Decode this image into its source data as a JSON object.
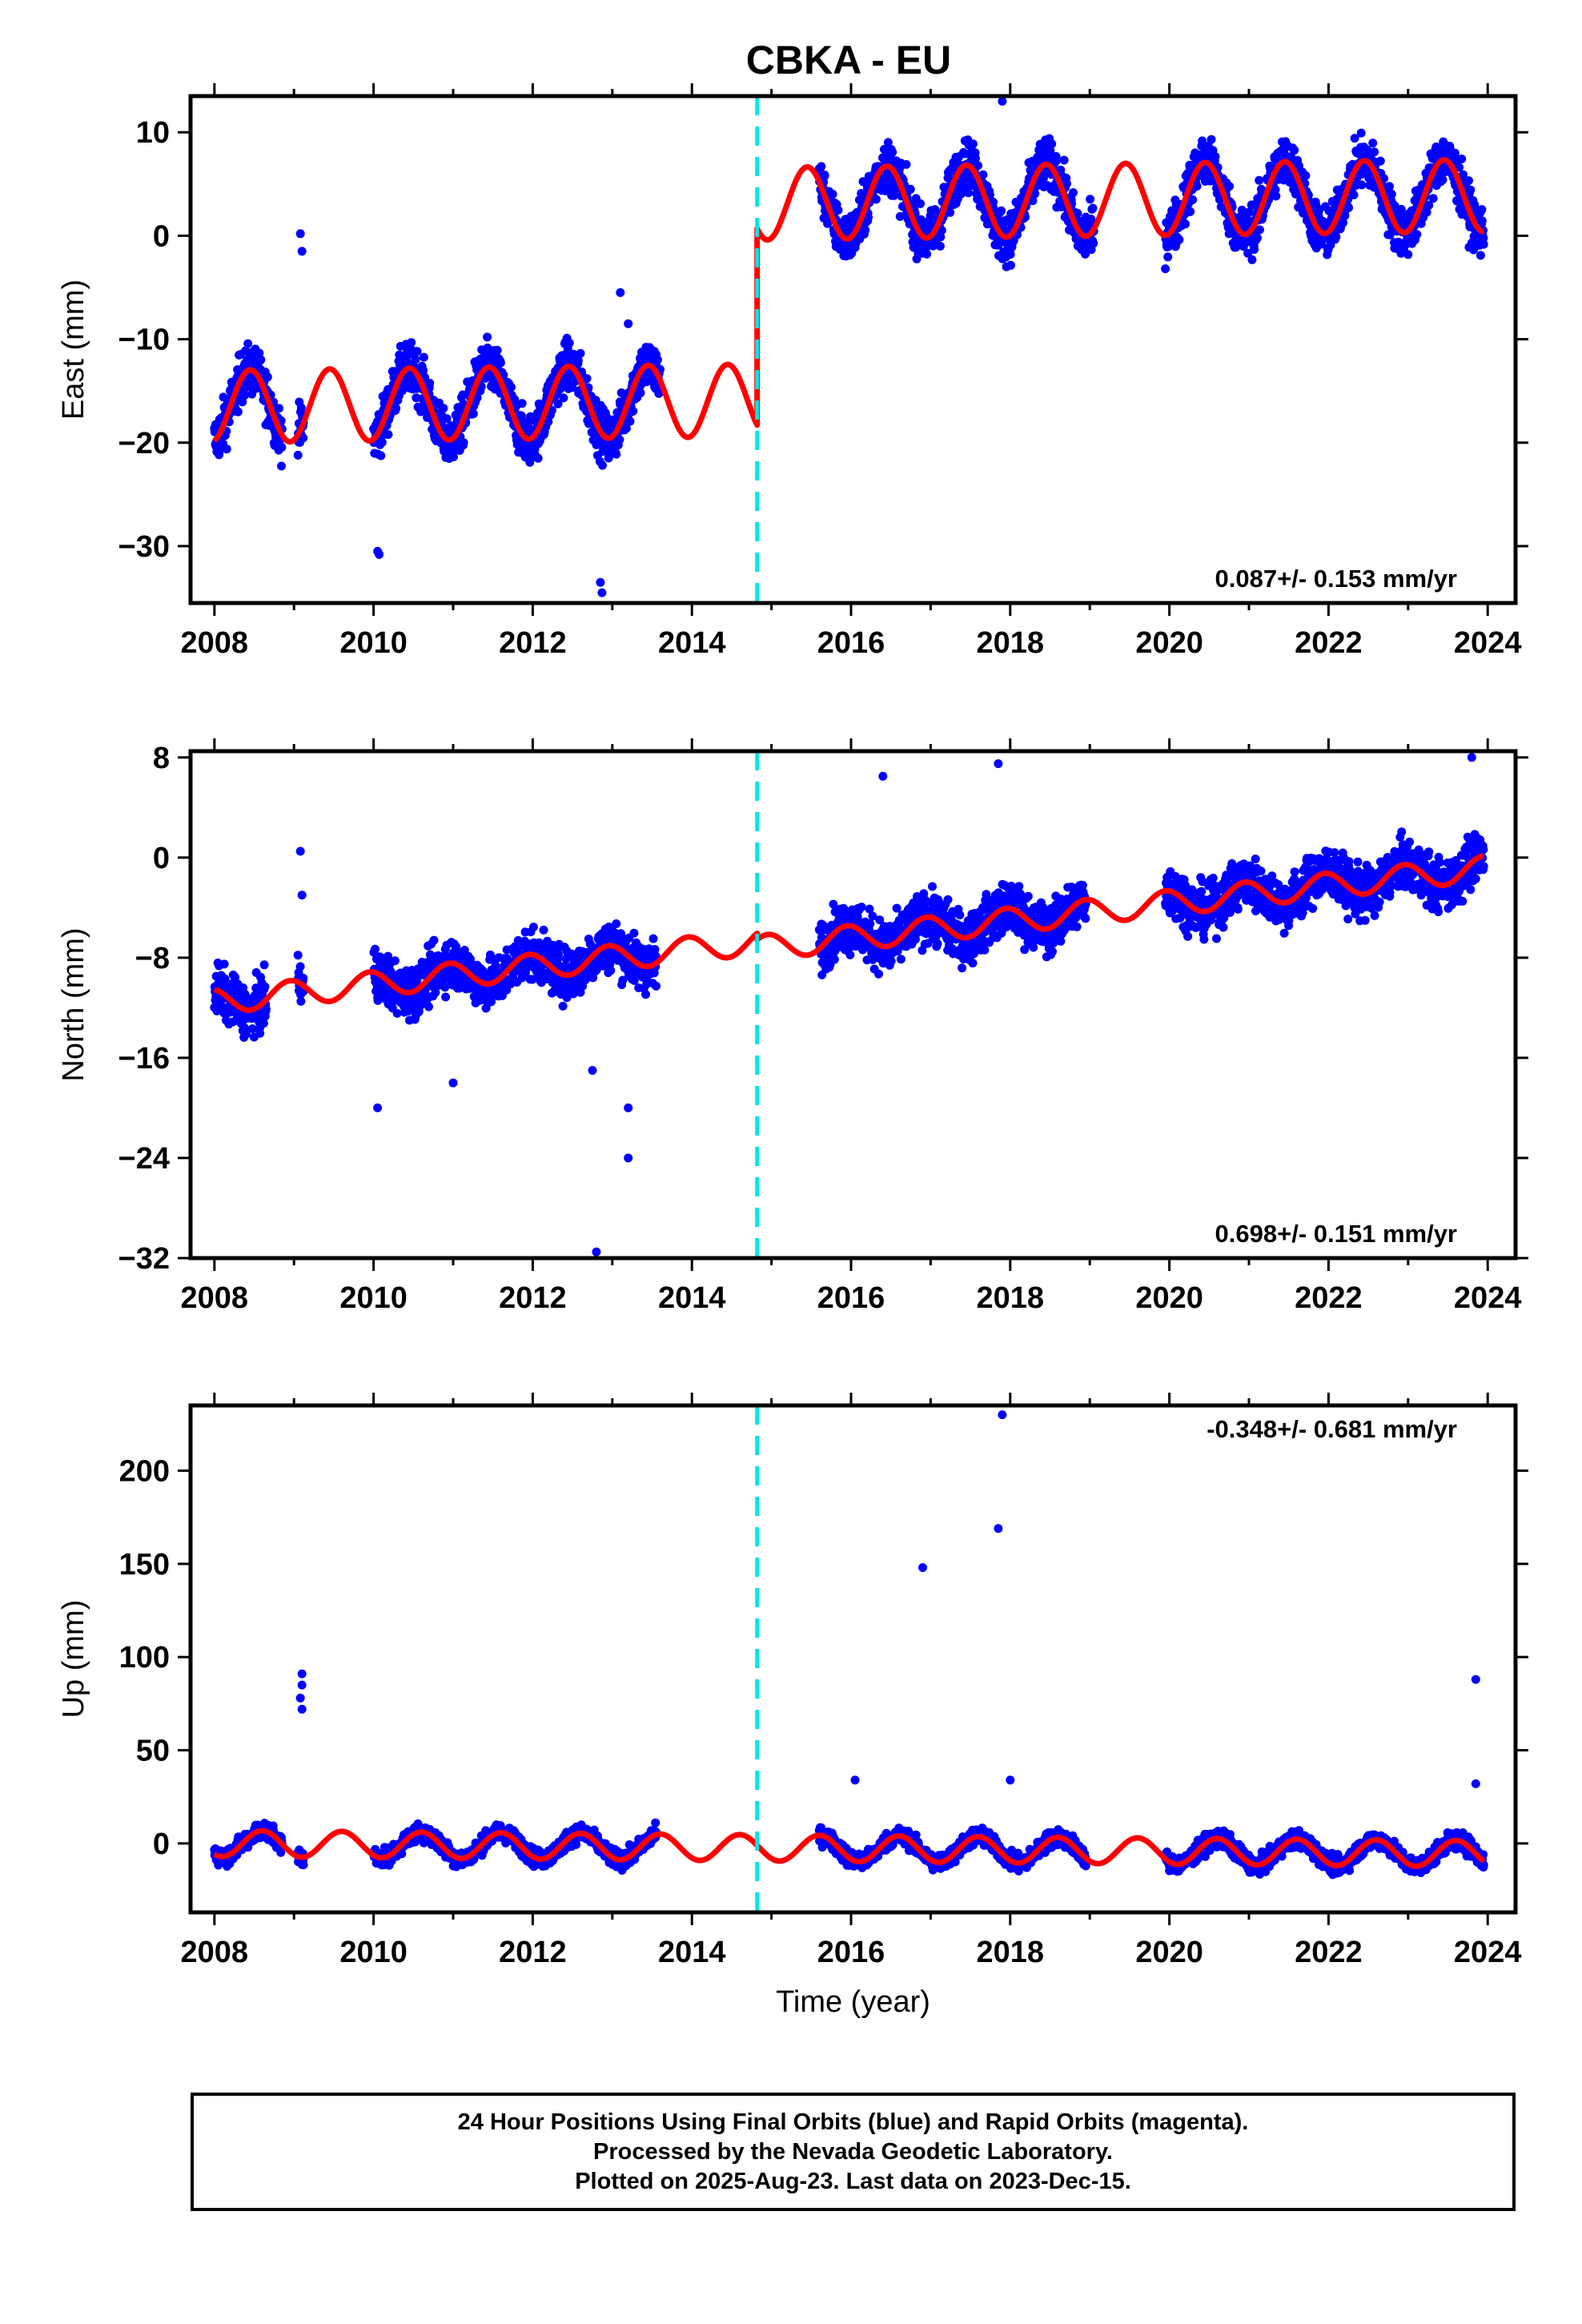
{
  "title": "CBKA - EU",
  "footer": {
    "line1": "24 Hour Positions Using Final Orbits (blue) and Rapid Orbits (magenta).",
    "line2": "Processed by the Nevada Geodetic Laboratory.",
    "line3": "Plotted on 2025-Aug-23. Last data on 2023-Dec-15."
  },
  "colors": {
    "data": "#0000ff",
    "model": "#ff0000",
    "offset_line": "#00e5e5"
  },
  "chart_data": [
    {
      "type": "scatter",
      "name": "east",
      "ylabel": "East (mm)",
      "xlabel": "",
      "xlim": [
        2007.7,
        2024.35
      ],
      "ylim": [
        -35.5,
        13.5
      ],
      "xticks": [
        2008,
        2010,
        2012,
        2014,
        2016,
        2018,
        2020,
        2022,
        2024
      ],
      "yticks": [
        10,
        0,
        -10,
        -20,
        -30
      ],
      "offset_epoch": 2014.82,
      "velocity_label": "0.087+/- 0.153 mm/yr",
      "model": {
        "offset_before": -16.5,
        "offset_after": 2.5,
        "trend": 0.087,
        "amplitude": 3.5,
        "phase_peak": 2008.45
      },
      "data_segments": [
        [
          2008.0,
          2008.85
        ],
        [
          2009.05,
          2009.12
        ],
        [
          2010.0,
          2013.6
        ],
        [
          2015.6,
          2019.05
        ],
        [
          2019.95,
          2023.95
        ]
      ],
      "outliers": [
        [
          2009.08,
          0.2
        ],
        [
          2009.1,
          -1.5
        ],
        [
          2010.05,
          -30.5
        ],
        [
          2010.07,
          -30.8
        ],
        [
          2012.85,
          -33.5
        ],
        [
          2012.87,
          -34.5
        ],
        [
          2017.9,
          13.0
        ],
        [
          2013.1,
          -5.5
        ],
        [
          2013.2,
          -8.5
        ]
      ]
    },
    {
      "type": "scatter",
      "name": "north",
      "ylabel": "North (mm)",
      "xlabel": "",
      "xlim": [
        2007.7,
        2024.35
      ],
      "ylim": [
        -32,
        8.5
      ],
      "xticks": [
        2008,
        2010,
        2012,
        2014,
        2016,
        2018,
        2020,
        2022,
        2024
      ],
      "yticks": [
        8,
        0,
        -8,
        -16,
        -24,
        -32
      ],
      "offset_epoch": 2014.82,
      "velocity_label": "0.698+/- 0.151 mm/yr",
      "model": {
        "offset_before": -11.5,
        "offset_after": -12.0,
        "trend": 0.698,
        "amplitude": 1.0,
        "phase_peak": 2008.95
      },
      "data_segments": [
        [
          2008.0,
          2008.65
        ],
        [
          2009.05,
          2009.12
        ],
        [
          2010.0,
          2013.55
        ],
        [
          2015.6,
          2018.95
        ],
        [
          2019.95,
          2023.95
        ]
      ],
      "outliers": [
        [
          2009.08,
          0.5
        ],
        [
          2009.1,
          -3.0
        ],
        [
          2010.05,
          -20.0
        ],
        [
          2011.0,
          -18.0
        ],
        [
          2012.8,
          -31.5
        ],
        [
          2012.75,
          -17.0
        ],
        [
          2013.2,
          -20.0
        ],
        [
          2013.2,
          -24.0
        ],
        [
          2016.4,
          6.5
        ],
        [
          2017.85,
          7.5
        ],
        [
          2023.8,
          8.0
        ]
      ]
    },
    {
      "type": "scatter",
      "name": "up",
      "ylabel": "Up (mm)",
      "xlabel": "Time (year)",
      "xlim": [
        2007.7,
        2024.35
      ],
      "ylim": [
        -37,
        235
      ],
      "xticks": [
        2008,
        2010,
        2012,
        2014,
        2016,
        2018,
        2020,
        2022,
        2024
      ],
      "yticks": [
        200,
        150,
        100,
        50,
        0
      ],
      "offset_epoch": 2014.82,
      "velocity_label": "-0.348+/- 0.681 mm/yr",
      "model": {
        "offset_before": 0.0,
        "offset_after": 0.0,
        "trend": -0.348,
        "amplitude": 7.0,
        "phase_peak": 2008.6
      },
      "data_segments": [
        [
          2008.0,
          2008.85
        ],
        [
          2009.05,
          2009.12
        ],
        [
          2010.0,
          2013.55
        ],
        [
          2015.6,
          2018.95
        ],
        [
          2019.95,
          2023.95
        ]
      ],
      "outliers": [
        [
          2009.1,
          91.0
        ],
        [
          2009.1,
          85.0
        ],
        [
          2009.08,
          78.0
        ],
        [
          2009.1,
          72.0
        ],
        [
          2016.9,
          148.0
        ],
        [
          2017.85,
          169.0
        ],
        [
          2017.9,
          230.0
        ],
        [
          2018.0,
          34.0
        ],
        [
          2016.05,
          34.0
        ],
        [
          2023.85,
          88.0
        ],
        [
          2023.85,
          32.0
        ]
      ]
    }
  ]
}
